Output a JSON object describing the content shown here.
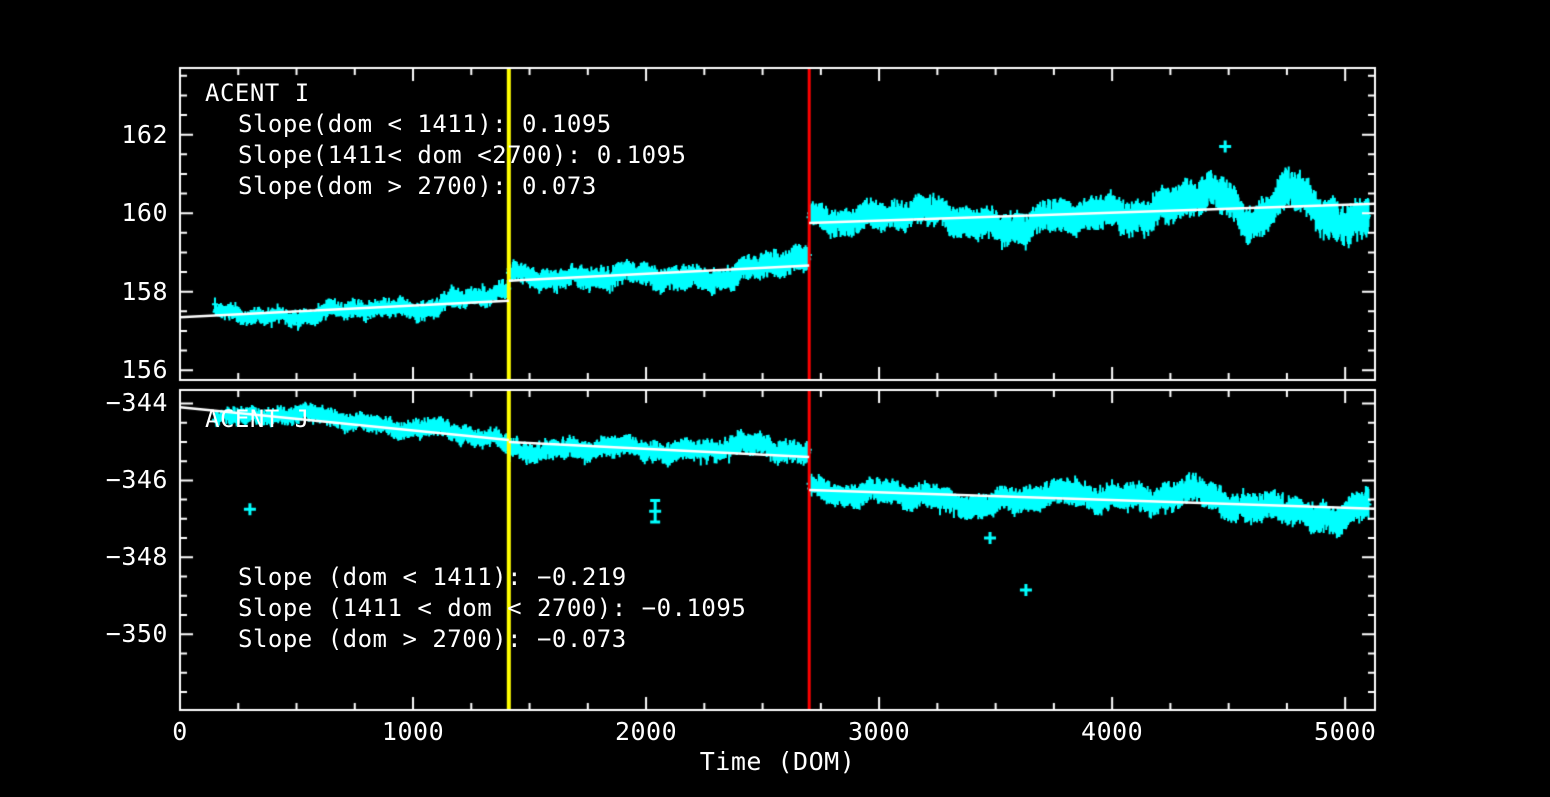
{
  "colors": {
    "background": "#000000",
    "data": "#00ffff",
    "fit_line": "#ffffff",
    "axis": "#ffffff",
    "text": "#ffffff",
    "break_line_1": "#ffff00",
    "break_line_2": "#ff0000"
  },
  "chart_data": {
    "type": "scatter",
    "xlabel": "Time (DOM)",
    "x_range": [
      0,
      5128
    ],
    "x_ticks": [
      {
        "v": 0,
        "label": "0"
      },
      {
        "v": 1000,
        "label": "1000"
      },
      {
        "v": 2000,
        "label": "2000"
      },
      {
        "v": 3000,
        "label": "3000"
      },
      {
        "v": 4000,
        "label": "4000"
      },
      {
        "v": 5000,
        "label": "5000"
      }
    ],
    "x_minor_step": 250,
    "marker_color": "#00ffff",
    "fit_color": "#ffffff",
    "axis_color": "#ffffff",
    "vlines": [
      {
        "x": 1411,
        "color": "#ffff00",
        "width": 4
      },
      {
        "x": 2700,
        "color": "#ff0000",
        "width": 3
      }
    ],
    "panels": [
      {
        "label": "ACENT I",
        "ylim": [
          155.75,
          163.7
        ],
        "y_ticks": [
          {
            "v": 162,
            "label": "162"
          },
          {
            "v": 160,
            "label": "160"
          },
          {
            "v": 158,
            "label": "158"
          },
          {
            "v": 156,
            "label": "156"
          }
        ],
        "y_minor_step": 0.5,
        "annotations": [
          "Slope(dom < 1411): 0.1095",
          "Slope(1411< dom <2700): 0.1095",
          "Slope(dom > 2700): 0.073"
        ],
        "breakpoints": [
          1411,
          2700
        ],
        "fit_segments": [
          {
            "x0": 0,
            "y0": 157.35,
            "x1": 1411,
            "y1": 157.77,
            "slope": 0.1095
          },
          {
            "x0": 1411,
            "y0": 158.28,
            "x1": 2700,
            "y1": 158.67,
            "slope": 0.1095
          },
          {
            "x0": 2700,
            "y0": 159.75,
            "x1": 5128,
            "y1": 160.24,
            "slope": 0.073
          }
        ],
        "data_start": 150,
        "data_end": 5100,
        "outliers": [
          {
            "x": 4485,
            "y": 161.7
          }
        ],
        "band": {
          "seed": 7,
          "points": 1750,
          "jitter": 0.05,
          "half_base": 0.12,
          "half_growth": 0.25,
          "wiggle_growth": 1.4,
          "wiggle": [
            {
              "amp": 0.09,
              "period": 1500,
              "phase": 2.0
            },
            {
              "amp": 0.07,
              "period": 620,
              "phase": 0.5
            },
            {
              "amp": 0.05,
              "period": 255,
              "phase": 4.1
            },
            {
              "amp": 0.035,
              "period": 105,
              "phase": 1.0
            }
          ],
          "surge": {
            "start": 4250,
            "amp": 0.55,
            "period": 430,
            "phase": 0.0
          }
        }
      },
      {
        "label": "ACENT J",
        "ylim": [
          -351.97,
          -343.65
        ],
        "y_ticks": [
          {
            "v": -344,
            "label": "−344"
          },
          {
            "v": -346,
            "label": "−346"
          },
          {
            "v": -348,
            "label": "−348"
          },
          {
            "v": -350,
            "label": "−350"
          }
        ],
        "y_minor_step": 0.5,
        "annotations": [
          "Slope (dom < 1411): −0.219",
          "Slope (1411 < dom < 2700): −0.1095",
          "Slope (dom > 2700): −0.073"
        ],
        "breakpoints": [
          1411,
          2700
        ],
        "fit_segments": [
          {
            "x0": 0,
            "y0": -344.1,
            "x1": 1411,
            "y1": -344.95,
            "slope": -0.219
          },
          {
            "x0": 1411,
            "y0": -345.0,
            "x1": 2700,
            "y1": -345.39,
            "slope": -0.1095
          },
          {
            "x0": 2700,
            "y0": -346.25,
            "x1": 5128,
            "y1": -346.74,
            "slope": -0.073
          }
        ],
        "data_start": 150,
        "data_end": 5100,
        "outliers": [
          {
            "x": 300,
            "y": -346.75
          },
          {
            "x": 2039,
            "y": -346.8,
            "err": 0.28
          },
          {
            "x": 3476,
            "y": -347.5
          },
          {
            "x": 3630,
            "y": -348.85
          }
        ],
        "band": {
          "seed": 13,
          "points": 1750,
          "jitter": 0.05,
          "half_base": 0.14,
          "half_growth": 0.14,
          "wiggle_growth": 0.9,
          "wiggle": [
            {
              "amp": 0.1,
              "period": 1700,
              "phase": 5.0
            },
            {
              "amp": 0.07,
              "period": 640,
              "phase": 2.4
            },
            {
              "amp": 0.05,
              "period": 270,
              "phase": 1.2
            },
            {
              "amp": 0.035,
              "period": 115,
              "phase": 3.3
            }
          ],
          "surge": {
            "start": 4300,
            "amp": 0.25,
            "period": 380,
            "phase": 0.8
          }
        }
      }
    ]
  }
}
